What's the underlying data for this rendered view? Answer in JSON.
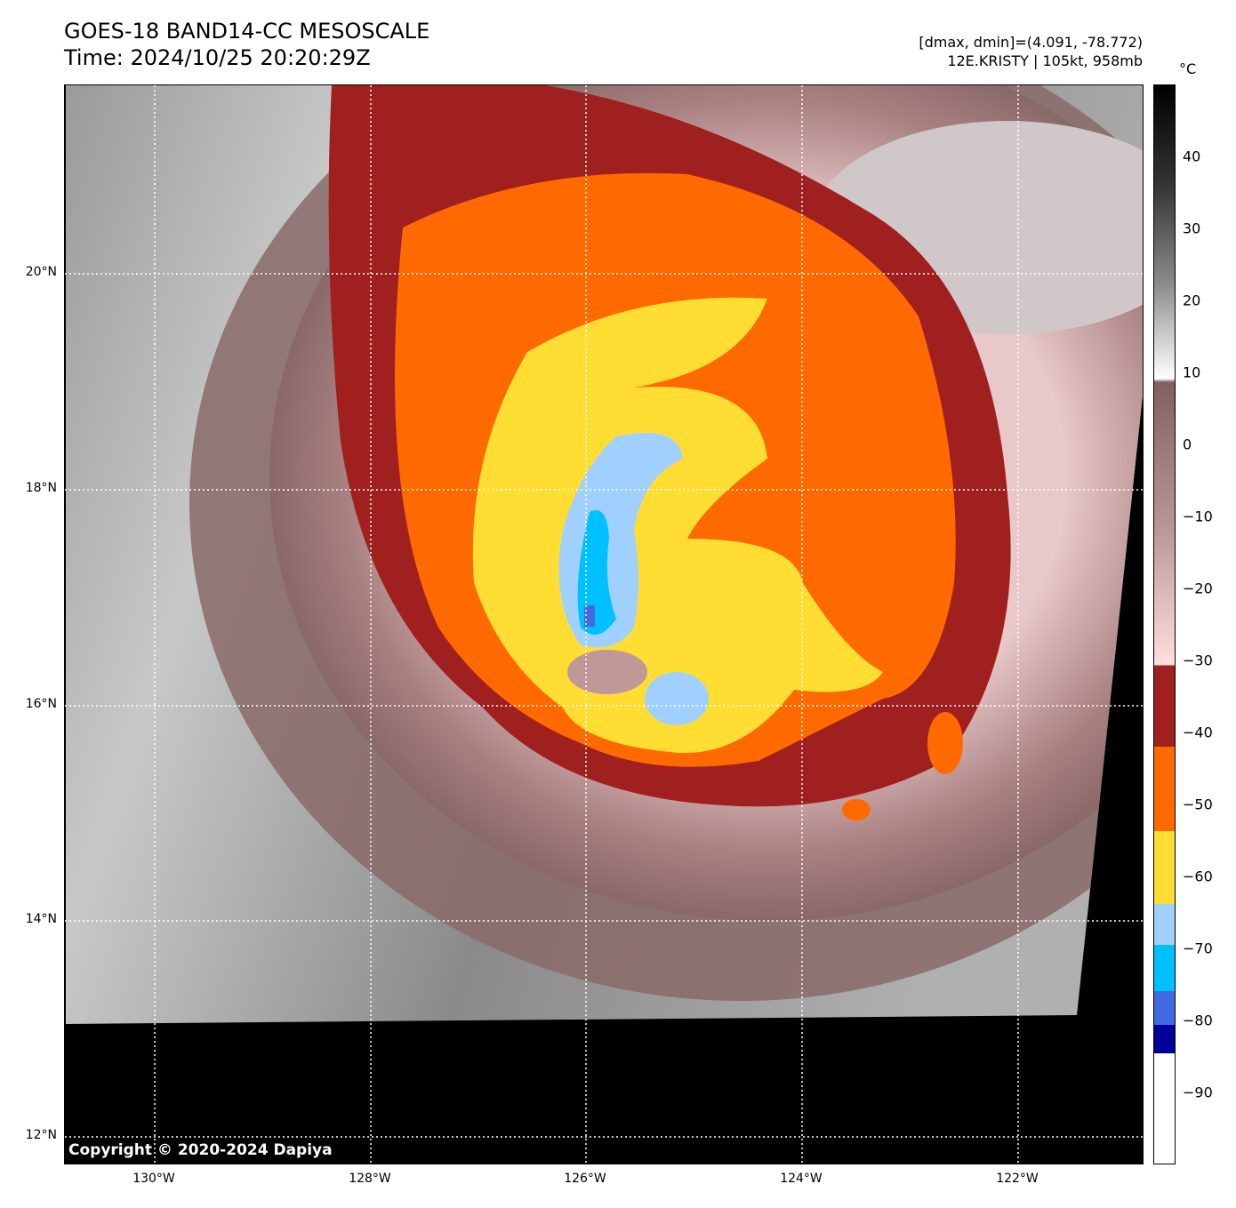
{
  "header": {
    "title": "GOES-18 BAND14-CC MESOSCALE",
    "time": "Time: 2024/10/25 20:20:29Z",
    "range": "[dmax, dmin]=(4.091, -78.772)",
    "storm": "12E.KRISTY | 105kt, 958mb"
  },
  "copyright": "Copyright © 2020-2024 Dapiya",
  "axes": {
    "lat_labels": [
      "20°N",
      "18°N",
      "16°N",
      "14°N",
      "12°N"
    ],
    "lon_labels": [
      "130°W",
      "128°W",
      "126°W",
      "124°W",
      "122°W"
    ]
  },
  "colorbar": {
    "unit": "°C",
    "range": [
      -100,
      50
    ],
    "ticks": [
      "40",
      "30",
      "20",
      "10",
      "0",
      "−10",
      "−20",
      "−30",
      "−40",
      "−50",
      "−60",
      "−70",
      "−80",
      "−90"
    ],
    "tick_values": [
      40,
      30,
      20,
      10,
      0,
      -10,
      -20,
      -30,
      -40,
      -50,
      -60,
      -70,
      -80,
      -90
    ],
    "colors": {
      "red": "#a02020",
      "orange": "#ff6a00",
      "yellow": "#ffdd33",
      "lightblue": "#a0d0ff",
      "cyan": "#00c0ff",
      "blue": "#4169e1",
      "navy": "#000099"
    }
  }
}
